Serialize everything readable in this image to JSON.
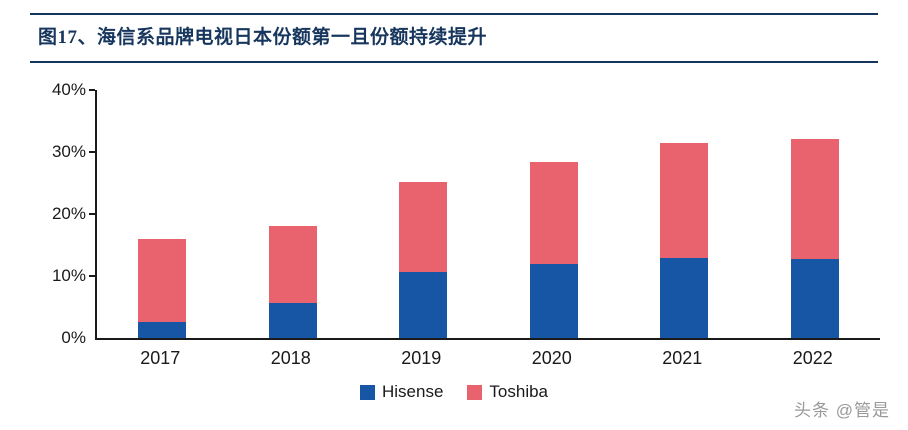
{
  "header": {
    "title": "图17、海信系品牌电视日本份额第一且份额持续提升"
  },
  "chart_data": {
    "type": "bar",
    "stacked": true,
    "title": "海信系品牌电视日本份额第一且份额持续提升",
    "categories": [
      "2017",
      "2018",
      "2019",
      "2020",
      "2021",
      "2022"
    ],
    "series": [
      {
        "name": "Hisense",
        "color": "#1656a4",
        "values": [
          2.6,
          5.6,
          10.6,
          12.0,
          12.9,
          12.8
        ]
      },
      {
        "name": "Toshiba",
        "color": "#e8636e",
        "values": [
          13.4,
          12.4,
          14.5,
          16.4,
          18.5,
          19.3
        ]
      }
    ],
    "totals": [
      16.0,
      18.0,
      25.1,
      28.4,
      31.4,
      32.1
    ],
    "xlabel": "",
    "ylabel": "",
    "ylim": [
      0,
      40
    ],
    "yticks": [
      0,
      10,
      20,
      30,
      40
    ],
    "ytick_labels": [
      "0%",
      "10%",
      "20%",
      "30%",
      "40%"
    ],
    "grid": false,
    "legend_position": "bottom"
  },
  "watermark": {
    "text": "头条 @管是"
  },
  "colors": {
    "accent_navy": "#17365d",
    "axis_black": "#1a1a1a",
    "hisense_blue": "#1656a4",
    "toshiba_red": "#e8636e",
    "watermark_gray": "#9a9a9a"
  }
}
